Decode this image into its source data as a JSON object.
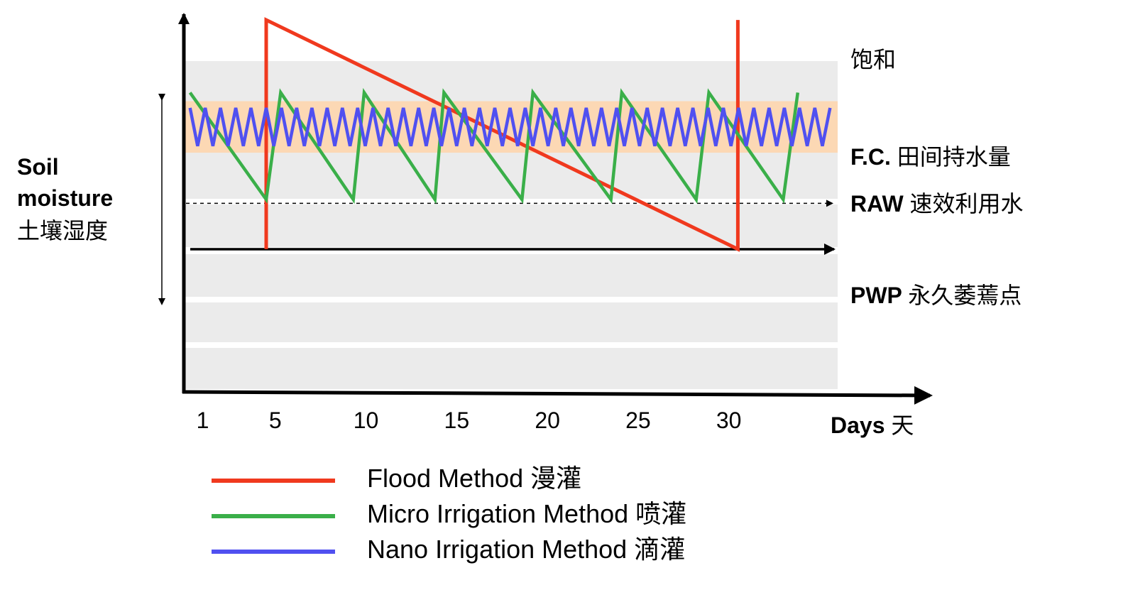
{
  "chart_data": {
    "type": "line",
    "title": "",
    "ylabel_lines": [
      "Soil",
      "moisture",
      "土壤湿度"
    ],
    "xlabel": "Days 天",
    "x_ticks": [
      "1",
      "5",
      "10",
      "15",
      "20",
      "25",
      "30"
    ],
    "x_tick_days": [
      1,
      5,
      10,
      15,
      20,
      25,
      30
    ],
    "xlim": [
      0,
      36
    ],
    "ylim": [
      0,
      100
    ],
    "grid": "horizontal bands",
    "levels": [
      {
        "key": "saturation",
        "label": "饱和",
        "value": 90
      },
      {
        "key": "fc",
        "label": "F.C. 田间持水量",
        "value": 75
      },
      {
        "key": "raw",
        "label": "RAW 速效利用水",
        "value": 63
      },
      {
        "key": "pwp",
        "label": "PWP 永久萎蔫点",
        "value": 37
      }
    ],
    "raw_band": {
      "label": "RAW 速效利用水",
      "min": 63,
      "max": 75,
      "color": "#fcd8b4"
    },
    "refill_line": {
      "value": 49
    },
    "series": [
      {
        "name": "Flood Method 漫灌",
        "color": "#f0391e",
        "points": [
          [
            4.5,
            37
          ],
          [
            4.5,
            97
          ],
          [
            30.5,
            37
          ],
          [
            30.5,
            97
          ]
        ]
      },
      {
        "name": "Micro Irrigation Method 喷灌",
        "color": "#3aaf49",
        "points": [
          [
            0.3,
            78
          ],
          [
            4.5,
            50
          ],
          [
            5.3,
            78
          ],
          [
            9.3,
            50
          ],
          [
            9.9,
            78
          ],
          [
            13.8,
            50
          ],
          [
            14.3,
            78
          ],
          [
            18.6,
            50
          ],
          [
            19.2,
            78
          ],
          [
            23.5,
            50
          ],
          [
            24.1,
            78
          ],
          [
            28.2,
            50
          ],
          [
            28.9,
            78
          ],
          [
            33,
            50
          ],
          [
            33.8,
            78
          ]
        ]
      },
      {
        "name": "Nano Irrigation Method 滴灌",
        "color": "#5050f0",
        "points": "zigzag",
        "zigzag": {
          "x_start": 0.3,
          "x_end": 35.8,
          "y_high": 74,
          "y_low": 64,
          "period_days": 0.84
        }
      }
    ],
    "legend_position": "bottom"
  }
}
